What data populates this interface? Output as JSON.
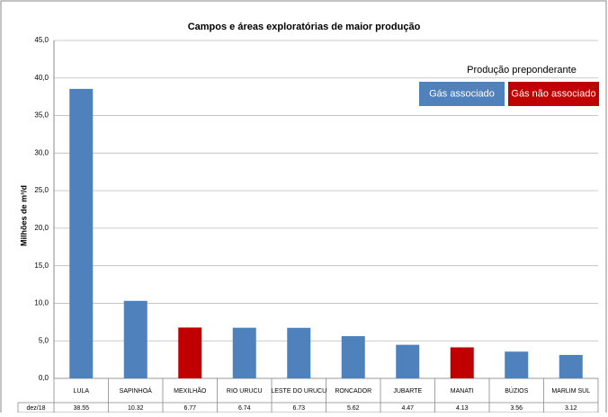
{
  "chart_data": {
    "type": "bar",
    "title": "Campos e áreas exploratórias de maior produção",
    "y_label": "Milhões de m³/d",
    "categories": [
      "LULA",
      "SAPINHOÁ",
      "MEXILHÃO",
      "RIO URUCU",
      "LESTE DO URUCU",
      "RONCADOR",
      "JUBARTE",
      "MANATI",
      "BÚZIOS",
      "MARLIM SUL"
    ],
    "series": [
      {
        "name": "Gás associado",
        "color": "#4f81bd",
        "values": [
          38.55,
          10.32,
          null,
          6.74,
          6.73,
          5.62,
          4.47,
          null,
          3.56,
          3.12
        ]
      },
      {
        "name": "Gás não associado",
        "color": "#c00000",
        "values": [
          null,
          null,
          6.77,
          null,
          null,
          null,
          null,
          4.13,
          null,
          null
        ]
      }
    ],
    "legend_title": "Produção preponderante",
    "table_row_label": "dez/18",
    "ylim": [
      0,
      45
    ],
    "yticks": [
      {
        "value": 0,
        "label": "0,0"
      },
      {
        "value": 5,
        "label": "5,0"
      },
      {
        "value": 10,
        "label": "10,0"
      },
      {
        "value": 15,
        "label": "15,0"
      },
      {
        "value": 20,
        "label": "20,0"
      },
      {
        "value": 25,
        "label": "25,0"
      },
      {
        "value": 30,
        "label": "30,0"
      },
      {
        "value": 35,
        "label": "35,0"
      },
      {
        "value": 40,
        "label": "40,0"
      },
      {
        "value": 45,
        "label": "45,0"
      }
    ],
    "grid": true
  }
}
